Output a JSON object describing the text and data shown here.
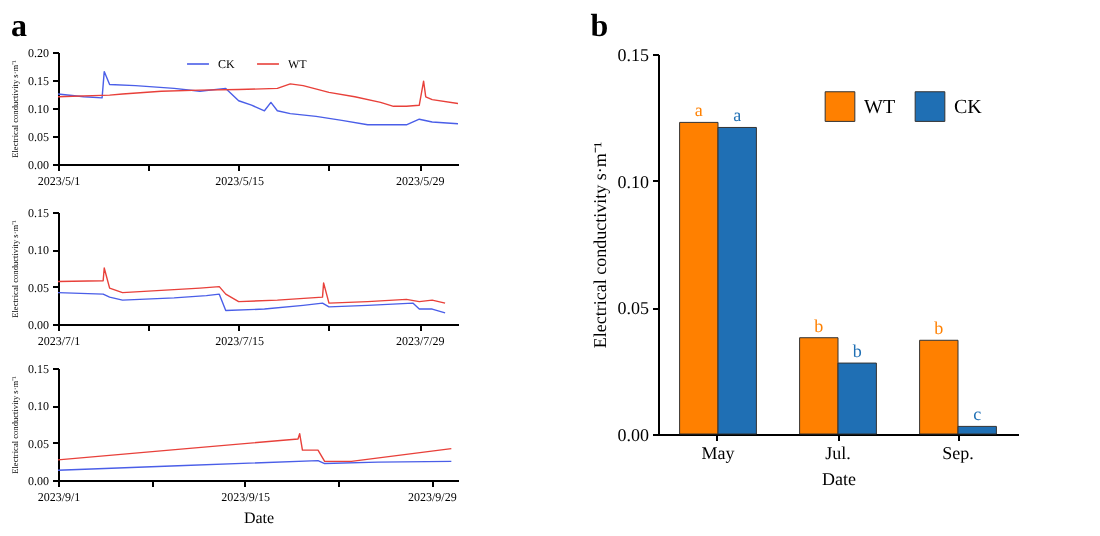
{
  "chart_data": [
    {
      "type": "line",
      "title": "a",
      "ylabel": "Electrical conductivity s·m⁻¹",
      "legend": "top",
      "xlim": [
        "2023-05-01",
        "2023-06-01"
      ],
      "xticks": [
        {
          "value": "2023-05-01",
          "label": "2023/5/1"
        },
        {
          "value": "2023-05-08",
          "label": null
        },
        {
          "value": "2023-05-15",
          "label": "2023/5/15"
        },
        {
          "value": "2023-05-22",
          "label": null
        },
        {
          "value": "2023-05-29",
          "label": "2023/5/29"
        }
      ],
      "ylim": [
        0,
        0.2
      ],
      "yticks": [
        {
          "value": 0,
          "label": "0.00"
        },
        {
          "value": 0.05,
          "label": "0.05"
        },
        {
          "value": 0.1,
          "label": "0.10"
        },
        {
          "value": 0.15,
          "label": "0.15"
        },
        {
          "value": 0.2,
          "label": "0.20"
        }
      ],
      "series": [
        {
          "name": "CK",
          "color": "#4a5ee8",
          "x": [
            "2023-05-01",
            "2023-05-03",
            "2023-05-04T10:00",
            "2023-05-04T14:00",
            "2023-05-05",
            "2023-05-07",
            "2023-05-10",
            "2023-05-12",
            "2023-05-14",
            "2023-05-15",
            "2023-05-16",
            "2023-05-17",
            "2023-05-17T12:00",
            "2023-05-18",
            "2023-05-19",
            "2023-05-21",
            "2023-05-23",
            "2023-05-25",
            "2023-05-28",
            "2023-05-29",
            "2023-05-30",
            "2023-06-01"
          ],
          "values": [
            0.125,
            0.12,
            0.118,
            0.165,
            0.142,
            0.14,
            0.135,
            0.13,
            0.135,
            0.113,
            0.105,
            0.095,
            0.11,
            0.095,
            0.09,
            0.085,
            0.078,
            0.07,
            0.07,
            0.08,
            0.075,
            0.072
          ]
        },
        {
          "name": "WT",
          "color": "#e8403a",
          "x": [
            "2023-05-01",
            "2023-05-05",
            "2023-05-06",
            "2023-05-09",
            "2023-05-12",
            "2023-05-15",
            "2023-05-18",
            "2023-05-19",
            "2023-05-20",
            "2023-05-22",
            "2023-05-24",
            "2023-05-26",
            "2023-05-27",
            "2023-05-28",
            "2023-05-29",
            "2023-05-29T08:00",
            "2023-05-29T12:00",
            "2023-05-30",
            "2023-06-01"
          ],
          "values": [
            0.12,
            0.123,
            0.125,
            0.13,
            0.132,
            0.133,
            0.135,
            0.143,
            0.14,
            0.128,
            0.12,
            0.11,
            0.103,
            0.103,
            0.105,
            0.148,
            0.12,
            0.115,
            0.108
          ]
        }
      ]
    },
    {
      "type": "line",
      "ylabel": "Electrical conductivity s·m⁻¹",
      "xlim": [
        "2023-07-01",
        "2023-08-01"
      ],
      "xticks": [
        {
          "value": "2023-07-01",
          "label": "2023/7/1"
        },
        {
          "value": "2023-07-08",
          "label": null
        },
        {
          "value": "2023-07-15",
          "label": "2023/7/15"
        },
        {
          "value": "2023-07-22",
          "label": null
        },
        {
          "value": "2023-07-29",
          "label": "2023/7/29"
        }
      ],
      "ylim": [
        0,
        0.15
      ],
      "yticks": [
        {
          "value": 0,
          "label": "0.00"
        },
        {
          "value": 0.05,
          "label": "0.05"
        },
        {
          "value": 0.1,
          "label": "0.10"
        },
        {
          "value": 0.15,
          "label": "0.15"
        }
      ],
      "series": [
        {
          "color": "#4a5ee8",
          "x": [
            "2023-07-01",
            "2023-07-04T12:00",
            "2023-07-05",
            "2023-07-06",
            "2023-07-10",
            "2023-07-12T12:00",
            "2023-07-13T12:00",
            "2023-07-14",
            "2023-07-17",
            "2023-07-20",
            "2023-07-21T12:00",
            "2023-07-22",
            "2023-07-25",
            "2023-07-28T12:00",
            "2023-07-29",
            "2023-07-30",
            "2023-07-31"
          ],
          "values": [
            0.042,
            0.04,
            0.036,
            0.032,
            0.035,
            0.038,
            0.04,
            0.018,
            0.02,
            0.025,
            0.028,
            0.023,
            0.025,
            0.028,
            0.02,
            0.02,
            0.015
          ]
        },
        {
          "color": "#e8403a",
          "x": [
            "2023-07-01",
            "2023-07-04T12:00",
            "2023-07-04T14:00",
            "2023-07-05",
            "2023-07-06",
            "2023-07-09",
            "2023-07-12",
            "2023-07-13T12:00",
            "2023-07-14",
            "2023-07-15",
            "2023-07-18",
            "2023-07-21T12:00",
            "2023-07-21T14:00",
            "2023-07-22",
            "2023-07-25",
            "2023-07-28",
            "2023-07-29",
            "2023-07-30",
            "2023-07-31"
          ],
          "values": [
            0.057,
            0.058,
            0.075,
            0.048,
            0.042,
            0.045,
            0.048,
            0.05,
            0.04,
            0.03,
            0.032,
            0.036,
            0.055,
            0.028,
            0.03,
            0.033,
            0.03,
            0.032,
            0.028
          ]
        }
      ]
    },
    {
      "type": "line",
      "ylabel": "Electrical conductivity s·m⁻¹",
      "xlabel": "Date",
      "xlim": [
        "2023-09-01",
        "2023-10-01"
      ],
      "xticks": [
        {
          "value": "2023-09-01",
          "label": "2023/9/1"
        },
        {
          "value": "2023-09-08",
          "label": null
        },
        {
          "value": "2023-09-15",
          "label": "2023/9/15"
        },
        {
          "value": "2023-09-22",
          "label": null
        },
        {
          "value": "2023-09-29",
          "label": "2023/9/29"
        }
      ],
      "ylim": [
        0,
        0.15
      ],
      "yticks": [
        {
          "value": 0,
          "label": "0.00"
        },
        {
          "value": 0.05,
          "label": "0.05"
        },
        {
          "value": 0.1,
          "label": "0.10"
        },
        {
          "value": 0.15,
          "label": "0.15"
        }
      ],
      "series": [
        {
          "color": "#4a5ee8",
          "x": [
            "2023-09-01",
            "2023-09-10",
            "2023-09-20T12:00",
            "2023-09-21",
            "2023-09-25",
            "2023-09-30T12:00"
          ],
          "values": [
            0.013,
            0.019,
            0.026,
            0.022,
            0.024,
            0.025
          ]
        },
        {
          "color": "#e8403a",
          "x": [
            "2023-09-01",
            "2023-09-10",
            "2023-09-19",
            "2023-09-19T03:00",
            "2023-09-19T08:00",
            "2023-09-20T12:00",
            "2023-09-21",
            "2023-09-23",
            "2023-09-30T12:00"
          ],
          "values": [
            0.027,
            0.041,
            0.055,
            0.062,
            0.04,
            0.04,
            0.025,
            0.025,
            0.042
          ]
        }
      ]
    },
    {
      "type": "bar",
      "title": "b",
      "xlabel": "Date",
      "ylabel": "Electrical conductivity s·m⁻¹",
      "legend": "top right",
      "categories": [
        "May",
        "Jul.",
        "Sep."
      ],
      "ylim": [
        0,
        0.15
      ],
      "yticks": [
        {
          "value": 0,
          "label": "0.00"
        },
        {
          "value": 0.05,
          "label": "0.05"
        },
        {
          "value": 0.1,
          "label": "0.10"
        },
        {
          "value": 0.15,
          "label": "0.15"
        }
      ],
      "series": [
        {
          "name": "WT",
          "color": "#ff8000",
          "values": [
            0.123,
            0.038,
            0.037
          ],
          "value_labels": [
            "a",
            "b",
            "b"
          ]
        },
        {
          "name": "CK",
          "color": "#1f6fb4",
          "values": [
            0.121,
            0.028,
            0.003
          ],
          "value_labels": [
            "a",
            "b",
            "c"
          ]
        }
      ]
    }
  ]
}
